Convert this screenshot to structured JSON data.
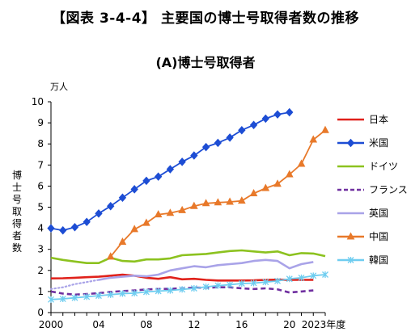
{
  "figure_title": "【図表 3-4-4】 主要国の博士号取得者数の推移",
  "chart_data": {
    "type": "line",
    "title": "(A)博士号取得者",
    "unit_label": "万人",
    "ylabel": "博士号取得者数",
    "ylim": [
      0,
      10
    ],
    "yticks": [
      "0",
      "1",
      "2",
      "3",
      "4",
      "5",
      "6",
      "7",
      "8",
      "9",
      "10"
    ],
    "xlim": [
      2000,
      2023
    ],
    "xticks": [
      {
        "year": 2000,
        "label": "2000"
      },
      {
        "year": 2004,
        "label": "04"
      },
      {
        "year": 2008,
        "label": "08"
      },
      {
        "year": 2012,
        "label": "12"
      },
      {
        "year": 2016,
        "label": "16"
      },
      {
        "year": 2020,
        "label": "20"
      },
      {
        "year": 2023,
        "label": "2023年度"
      }
    ],
    "grid": false,
    "legend_position": "right",
    "series": [
      {
        "name": "日本",
        "color": "#e0211a",
        "marker": "none",
        "dash": "solid",
        "x": [
          2000,
          2001,
          2002,
          2003,
          2004,
          2005,
          2006,
          2007,
          2008,
          2009,
          2010,
          2011,
          2012,
          2013,
          2014,
          2015,
          2016,
          2017,
          2018,
          2019,
          2020,
          2021,
          2022
        ],
        "y": [
          1.62,
          1.63,
          1.65,
          1.68,
          1.7,
          1.75,
          1.8,
          1.75,
          1.65,
          1.6,
          1.68,
          1.58,
          1.6,
          1.55,
          1.52,
          1.52,
          1.52,
          1.53,
          1.55,
          1.56,
          1.55,
          1.55,
          1.55
        ]
      },
      {
        "name": "米国",
        "color": "#1d4dd4",
        "marker": "diamond",
        "dash": "solid",
        "x": [
          2000,
          2001,
          2002,
          2003,
          2004,
          2005,
          2006,
          2007,
          2008,
          2009,
          2010,
          2011,
          2012,
          2013,
          2014,
          2015,
          2016,
          2017,
          2018,
          2019,
          2020
        ],
        "y": [
          4.0,
          3.9,
          4.05,
          4.3,
          4.7,
          5.05,
          5.45,
          5.85,
          6.25,
          6.45,
          6.8,
          7.15,
          7.45,
          7.85,
          8.05,
          8.3,
          8.65,
          8.9,
          9.2,
          9.4,
          9.5
        ]
      },
      {
        "name": "ドイツ",
        "color": "#8cc21f",
        "marker": "none",
        "dash": "solid",
        "x": [
          2000,
          2001,
          2002,
          2003,
          2004,
          2005,
          2006,
          2007,
          2008,
          2009,
          2010,
          2011,
          2012,
          2013,
          2014,
          2015,
          2016,
          2017,
          2018,
          2019,
          2020,
          2021,
          2022,
          2023
        ],
        "y": [
          2.6,
          2.5,
          2.42,
          2.35,
          2.35,
          2.6,
          2.45,
          2.42,
          2.52,
          2.52,
          2.57,
          2.72,
          2.75,
          2.78,
          2.85,
          2.92,
          2.95,
          2.9,
          2.85,
          2.9,
          2.72,
          2.82,
          2.8,
          2.68
        ]
      },
      {
        "name": "フランス",
        "color": "#7030a0",
        "marker": "none",
        "dash": "dash",
        "x": [
          2000,
          2001,
          2002,
          2003,
          2004,
          2005,
          2006,
          2007,
          2008,
          2009,
          2010,
          2011,
          2012,
          2013,
          2014,
          2015,
          2016,
          2017,
          2018,
          2019,
          2020,
          2021,
          2022
        ],
        "y": [
          1.0,
          0.9,
          0.85,
          0.88,
          0.92,
          0.98,
          1.02,
          1.05,
          1.1,
          1.12,
          1.13,
          1.15,
          1.18,
          1.18,
          1.2,
          1.2,
          1.15,
          1.12,
          1.15,
          1.1,
          0.95,
          1.0,
          1.05
        ]
      },
      {
        "name": "英国",
        "color": "#a9a3e8",
        "marker": "none",
        "dash": "solid",
        "dotted_until": 2004,
        "x": [
          2000,
          2001,
          2002,
          2003,
          2004,
          2005,
          2006,
          2007,
          2008,
          2009,
          2010,
          2011,
          2012,
          2013,
          2014,
          2015,
          2016,
          2017,
          2018,
          2019,
          2020,
          2021,
          2022
        ],
        "y": [
          1.12,
          1.2,
          1.35,
          1.45,
          1.55,
          1.65,
          1.7,
          1.75,
          1.72,
          1.8,
          2.0,
          2.1,
          2.2,
          2.15,
          2.25,
          2.3,
          2.35,
          2.45,
          2.5,
          2.45,
          2.1,
          2.3,
          2.4
        ]
      },
      {
        "name": "中国",
        "color": "#e8792a",
        "marker": "triangle",
        "dash": "solid",
        "x": [
          2005,
          2006,
          2007,
          2008,
          2009,
          2010,
          2011,
          2012,
          2013,
          2014,
          2015,
          2016,
          2017,
          2018,
          2019,
          2020,
          2021,
          2022,
          2023
        ],
        "y": [
          2.65,
          3.35,
          3.95,
          4.25,
          4.65,
          4.72,
          4.85,
          5.05,
          5.18,
          5.22,
          5.25,
          5.3,
          5.65,
          5.9,
          6.1,
          6.55,
          7.05,
          8.2,
          8.65
        ]
      },
      {
        "name": "韓国",
        "color": "#6fcdf0",
        "marker": "asterisk",
        "dash": "solid",
        "x": [
          2000,
          2001,
          2002,
          2003,
          2004,
          2005,
          2006,
          2007,
          2008,
          2009,
          2010,
          2011,
          2012,
          2013,
          2014,
          2015,
          2016,
          2017,
          2018,
          2019,
          2020,
          2021,
          2022,
          2023
        ],
        "y": [
          0.62,
          0.65,
          0.7,
          0.75,
          0.8,
          0.85,
          0.9,
          0.92,
          0.98,
          1.02,
          1.05,
          1.1,
          1.15,
          1.22,
          1.28,
          1.32,
          1.38,
          1.4,
          1.45,
          1.5,
          1.6,
          1.65,
          1.75,
          1.8
        ]
      }
    ]
  }
}
